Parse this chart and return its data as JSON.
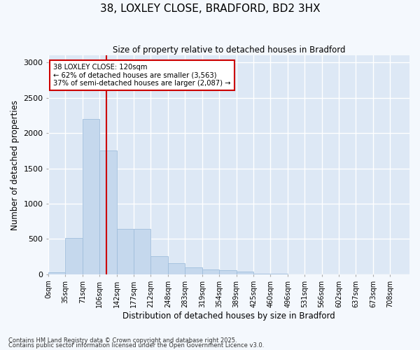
{
  "title_line1": "38, LOXLEY CLOSE, BRADFORD, BD2 3HX",
  "title_line2": "Size of property relative to detached houses in Bradford",
  "xlabel": "Distribution of detached houses by size in Bradford",
  "ylabel": "Number of detached properties",
  "bar_color": "#c5d8ed",
  "bar_edge_color": "#a0bedc",
  "background_color": "#dde8f5",
  "grid_color": "#ffffff",
  "annotation_box_color": "#cc0000",
  "vline_color": "#cc0000",
  "annotation_title": "38 LOXLEY CLOSE: 120sqm",
  "annotation_line1": "← 62% of detached houses are smaller (3,563)",
  "annotation_line2": "37% of semi-detached houses are larger (2,087) →",
  "property_size": 120,
  "categories": [
    "0sqm",
    "35sqm",
    "71sqm",
    "106sqm",
    "142sqm",
    "177sqm",
    "212sqm",
    "248sqm",
    "283sqm",
    "319sqm",
    "354sqm",
    "389sqm",
    "425sqm",
    "460sqm",
    "496sqm",
    "531sqm",
    "566sqm",
    "602sqm",
    "637sqm",
    "673sqm",
    "708sqm"
  ],
  "bin_edges": [
    0,
    35,
    71,
    106,
    142,
    177,
    212,
    248,
    283,
    319,
    354,
    389,
    425,
    460,
    496,
    531,
    566,
    602,
    637,
    673,
    708
  ],
  "values": [
    30,
    510,
    2200,
    1750,
    640,
    640,
    255,
    160,
    100,
    65,
    55,
    38,
    12,
    8,
    3,
    1,
    0,
    0,
    0,
    0,
    0
  ],
  "ylim": [
    0,
    3100
  ],
  "yticks": [
    0,
    500,
    1000,
    1500,
    2000,
    2500,
    3000
  ],
  "fig_bg": "#f4f8fd",
  "footnote1": "Contains HM Land Registry data © Crown copyright and database right 2025.",
  "footnote2": "Contains public sector information licensed under the Open Government Licence v3.0."
}
